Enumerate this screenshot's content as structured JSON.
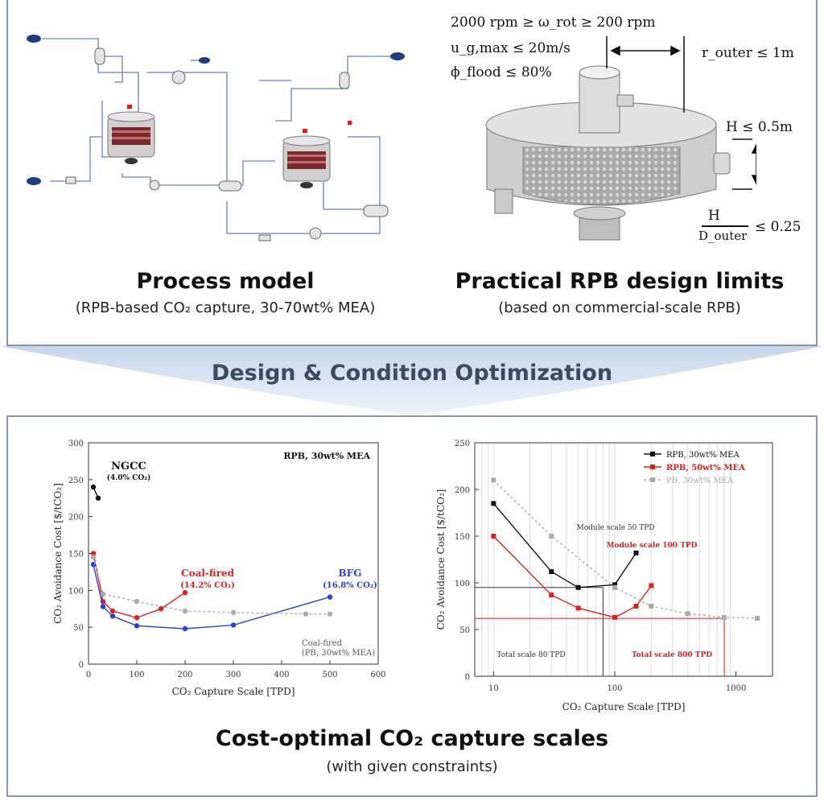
{
  "top": {
    "process_model_title": "Process model",
    "process_model_sub": "(RPB-based CO₂ capture, 30-70wt% MEA)",
    "rpb_limits_title": "Practical RPB design limits",
    "rpb_limits_sub": "(based on commercial-scale RPB)",
    "constraints": {
      "rpm": "2000 rpm ≥ ω_rot ≥ 200 rpm",
      "velocity": "u_g,max ≤ 20m/s",
      "flood": "ϕ_flood ≤ 80%",
      "radius": "r_outer ≤ 1m",
      "height": "H ≤ 0.5m",
      "ratio_num": "H",
      "ratio_den": "D_outer",
      "ratio_limit": "≤ 0.25"
    }
  },
  "banner": {
    "text": "Design & Condition Optimization"
  },
  "bottom": {
    "title": "Cost-optimal CO₂ capture scales",
    "sub": "(with given constraints)"
  },
  "chart_data": [
    {
      "type": "scatter",
      "xlabel": "CO₂ Capture Scale [TPD]",
      "ylabel": "CO₂ Avoidance Cost [$/tCO₂]",
      "xlim": [
        0,
        600
      ],
      "ylim": [
        0,
        300
      ],
      "xticks": [
        "0",
        "100",
        "200",
        "300",
        "400",
        "500",
        "600"
      ],
      "yticks": [
        "0",
        "50",
        "100",
        "150",
        "200",
        "250",
        "300"
      ],
      "inset_label": "RPB, 30wt% MEA",
      "annotations": [
        {
          "text": "NGCC",
          "color": "#111111"
        },
        {
          "text": "(4.0% CO₂)",
          "color": "#111111"
        },
        {
          "text": "Coal-fired",
          "color": "#e0201c"
        },
        {
          "text": "(14.2% CO₂)",
          "color": "#e0201c"
        },
        {
          "text": "BFG",
          "color": "#2a3fd8"
        },
        {
          "text": "(16.8% CO₂)",
          "color": "#2a3fd8"
        },
        {
          "text": "Coal-fired",
          "color": "#555555"
        },
        {
          "text": "(PB, 30wt% MEA)",
          "color": "#555555"
        }
      ],
      "series": [
        {
          "color": "#111111",
          "x": [
            10,
            20
          ],
          "y": [
            240,
            225
          ]
        },
        {
          "color": "#e0201c",
          "x": [
            10,
            30,
            50,
            100,
            150,
            200
          ],
          "y": [
            150,
            85,
            72,
            63,
            75,
            97
          ]
        },
        {
          "color": "#2a3fd8",
          "x": [
            10,
            30,
            50,
            100,
            200,
            300,
            500
          ],
          "y": [
            135,
            78,
            65,
            52,
            48,
            53,
            91
          ]
        },
        {
          "color": "#aaaaaa",
          "x": [
            10,
            30,
            100,
            200,
            300,
            450,
            500
          ],
          "y": [
            145,
            95,
            85,
            72,
            70,
            68,
            68
          ]
        }
      ]
    },
    {
      "type": "line",
      "xscale": "log",
      "xlabel": "CO₂ Capture Scale [TPD]",
      "ylabel": "CO₂ Avoidance Cost [$/tCO₂]",
      "xlim": [
        7,
        2000
      ],
      "ylim": [
        0,
        250
      ],
      "xticks": [
        "10",
        "100",
        "1000"
      ],
      "yticks": [
        "0",
        "50",
        "100",
        "150",
        "200",
        "250"
      ],
      "legend": "top-right",
      "annotations": [
        {
          "text": "Module scale 50 TPD",
          "color": "#333333"
        },
        {
          "text": "Module scale 100 TPD",
          "color": "#e0201c"
        },
        {
          "text": "Total scale 80 TPD",
          "color": "#333333"
        },
        {
          "text": "Total scale 800 TPD",
          "color": "#e0201c"
        }
      ],
      "series": [
        {
          "name": "RPB, 30wt% MEA",
          "color": "#111111",
          "x": [
            10,
            30,
            50,
            100,
            150
          ],
          "y": [
            185,
            112,
            95,
            98,
            132
          ]
        },
        {
          "name": "RPB, 50wt% MEA",
          "color": "#e0201c",
          "x": [
            10,
            30,
            50,
            100,
            150,
            200
          ],
          "y": [
            150,
            87,
            73,
            63,
            75,
            97
          ]
        },
        {
          "name": "PB, 30wt% MEA",
          "color": "#aaaaaa",
          "x": [
            10,
            30,
            100,
            200,
            400,
            800,
            1500
          ],
          "y": [
            210,
            150,
            95,
            75,
            67,
            63,
            62
          ]
        }
      ]
    }
  ]
}
